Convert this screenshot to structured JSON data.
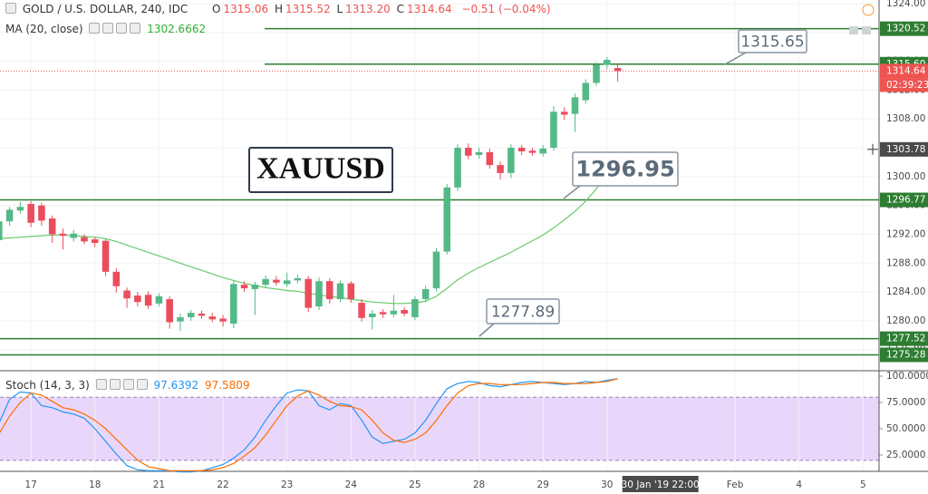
{
  "chart_data": {
    "type": "candlestick",
    "symbol": "GOLD / U.S. DOLLAR, 240, IDC",
    "ohlc_labels": [
      "O",
      "H",
      "L",
      "C"
    ],
    "legend_values": [
      "1315.06",
      "1315.52",
      "1313.20",
      "1314.64"
    ],
    "change": "−0.51 (−0.04%)",
    "colors": {
      "up": "#53b987",
      "down": "#eb4d5c"
    },
    "open": [
      1291.2,
      1293.8,
      1295.3,
      1296.2,
      1296.0,
      1294.2,
      1292.1,
      1291.5,
      1291.6,
      1291.3,
      1291.1,
      1286.8,
      1284.2,
      1283.5,
      1283.6,
      1282.4,
      1283.0,
      1279.9,
      1280.5,
      1281.0,
      1280.6,
      1280.3,
      1279.6,
      1285.0,
      1284.4,
      1285.0,
      1285.7,
      1285.1,
      1285.6,
      1285.8,
      1282.0,
      1285.5,
      1283.0,
      1285.2,
      1282.5,
      1280.5,
      1281.2,
      1280.9,
      1281.5,
      1280.5,
      1283.0,
      1284.5,
      1289.6,
      1298.5,
      1304.0,
      1303.0,
      1303.4,
      1301.6,
      1300.5,
      1304.0,
      1303.6,
      1303.2,
      1304.0,
      1309.0,
      1308.7,
      1310.6,
      1313.0,
      1315.5,
      1315.06
    ],
    "high": [
      1294.2,
      1295.8,
      1296.5,
      1296.6,
      1296.4,
      1294.6,
      1292.8,
      1292.6,
      1292.0,
      1291.6,
      1291.4,
      1287.3,
      1284.6,
      1284.0,
      1284.1,
      1283.8,
      1283.4,
      1281.0,
      1281.5,
      1281.4,
      1281.1,
      1280.8,
      1285.6,
      1285.5,
      1285.4,
      1286.3,
      1286.2,
      1286.7,
      1286.4,
      1286.2,
      1286.0,
      1285.9,
      1285.6,
      1285.5,
      1283.0,
      1281.5,
      1281.6,
      1283.6,
      1281.9,
      1283.4,
      1284.9,
      1290.1,
      1299.0,
      1304.5,
      1304.6,
      1304.0,
      1303.9,
      1302.1,
      1304.5,
      1304.4,
      1304.0,
      1304.4,
      1309.8,
      1309.6,
      1311.5,
      1313.5,
      1315.9,
      1316.6,
      1315.52
    ],
    "low": [
      1290.5,
      1293.2,
      1294.9,
      1293.0,
      1293.2,
      1290.8,
      1289.9,
      1291.0,
      1290.6,
      1290.2,
      1286.2,
      1283.9,
      1281.8,
      1282.0,
      1281.6,
      1282.0,
      1278.9,
      1278.6,
      1280.0,
      1280.3,
      1279.8,
      1279.2,
      1279.0,
      1284.0,
      1280.8,
      1284.6,
      1284.9,
      1284.7,
      1285.2,
      1281.2,
      1281.5,
      1282.4,
      1282.6,
      1282.5,
      1279.9,
      1278.8,
      1280.4,
      1280.5,
      1280.6,
      1280.1,
      1282.6,
      1284.1,
      1289.2,
      1298.0,
      1302.4,
      1302.5,
      1301.1,
      1299.6,
      1299.8,
      1303.0,
      1302.9,
      1302.8,
      1303.6,
      1307.9,
      1306.2,
      1310.1,
      1312.6,
      1314.9,
      1313.2
    ],
    "close": [
      1293.8,
      1295.4,
      1295.8,
      1293.6,
      1293.9,
      1292.0,
      1291.8,
      1292.1,
      1291.0,
      1290.8,
      1286.8,
      1284.8,
      1283.1,
      1282.6,
      1282.1,
      1283.4,
      1279.8,
      1280.5,
      1281.1,
      1280.7,
      1280.2,
      1279.9,
      1285.1,
      1284.5,
      1285.0,
      1285.8,
      1285.3,
      1285.6,
      1285.9,
      1281.8,
      1285.5,
      1283.0,
      1285.2,
      1283.0,
      1280.4,
      1281.0,
      1280.9,
      1281.4,
      1281.0,
      1283.0,
      1284.4,
      1289.6,
      1298.5,
      1304.0,
      1302.9,
      1303.4,
      1301.6,
      1300.5,
      1304.0,
      1303.5,
      1303.3,
      1303.9,
      1309.0,
      1308.6,
      1311.0,
      1313.0,
      1315.5,
      1316.2,
      1314.64
    ],
    "xlim": [
      0.1,
      82.5
    ],
    "xticks": [
      {
        "value": 3,
        "label": "17"
      },
      {
        "value": 9,
        "label": "18"
      },
      {
        "value": 15,
        "label": "21"
      },
      {
        "value": 21,
        "label": "22"
      },
      {
        "value": 27,
        "label": "23"
      },
      {
        "value": 33,
        "label": "24"
      },
      {
        "value": 39,
        "label": "25"
      },
      {
        "value": 45,
        "label": "28"
      },
      {
        "value": 51,
        "label": "29"
      },
      {
        "value": 57,
        "label": "30"
      },
      {
        "value": 69,
        "label": "Feb"
      },
      {
        "value": 75,
        "label": "4"
      },
      {
        "value": 81,
        "label": "5"
      }
    ],
    "ylim": [
      1273.2,
      1324.5
    ],
    "yticks": [
      {
        "value": 1276,
        "label": "1276.00"
      },
      {
        "value": 1280,
        "label": "1280.00"
      },
      {
        "value": 1284,
        "label": "1284.00"
      },
      {
        "value": 1288,
        "label": "1288.00"
      },
      {
        "value": 1292,
        "label": "1292.00"
      },
      {
        "value": 1296,
        "label": "1296.00"
      },
      {
        "value": 1300,
        "label": "1300.00"
      },
      {
        "value": 1304,
        "label": "1304.00"
      },
      {
        "value": 1308,
        "label": "1308.00"
      },
      {
        "value": 1312,
        "label": "1312.00"
      },
      {
        "value": 1316,
        "label": "1316.00"
      },
      {
        "value": 1320,
        "label": "1320.00"
      },
      {
        "value": 1324,
        "label": "1324.00"
      }
    ],
    "grid": true,
    "ma": {
      "name": "MA (20, close)",
      "color": "#66cc66",
      "values": [
        1291.4,
        1291.5,
        1291.6,
        1291.7,
        1291.8,
        1291.9,
        1291.9,
        1291.8,
        1291.7,
        1291.6,
        1291.4,
        1291.0,
        1290.5,
        1290.0,
        1289.5,
        1289.0,
        1288.5,
        1288.0,
        1287.5,
        1287.0,
        1286.5,
        1286.0,
        1285.6,
        1285.2,
        1284.9,
        1284.6,
        1284.4,
        1284.2,
        1284.1,
        1283.8,
        1283.6,
        1283.4,
        1283.2,
        1283.0,
        1282.8,
        1282.6,
        1282.5,
        1282.4,
        1282.4,
        1282.5,
        1282.7,
        1283.4,
        1284.5,
        1285.7,
        1286.6,
        1287.4,
        1288.1,
        1288.8,
        1289.5,
        1290.3,
        1291.1,
        1291.9,
        1292.9,
        1294.0,
        1295.2,
        1296.6,
        1298.3,
        1300.4,
        1302.6662
      ]
    },
    "level_color": "#2e7d32",
    "levels": [
      1320.52,
      {
        "value": 1315.6,
        "label": "1315.60"
      },
      1296.77,
      1277.52,
      1275.28
    ],
    "countdown": "02:39:23",
    "crosshair": {
      "price": 1303.78,
      "x": 62,
      "label": "30 Jan '19  22:00"
    },
    "annotations": [
      "1315.65",
      "1296.95",
      "1277.89",
      "XAUUSD"
    ],
    "stoch": {
      "name": "Stoch (14, 3, 3)",
      "ylim": [
        9.5,
        104.3
      ],
      "yticks": [
        {
          "value": 25,
          "label": "25.0000"
        },
        {
          "value": 50,
          "label": "50.0000"
        },
        {
          "value": 75,
          "label": "75.0000"
        },
        {
          "value": 100,
          "label": "100.0000"
        }
      ],
      "band": [
        20,
        80
      ],
      "band_color": "#e4ccfa",
      "series": [
        {
          "color": "#2196f3",
          "values": [
            55,
            78,
            85,
            84,
            72,
            70,
            66,
            64,
            60,
            50,
            38,
            26,
            15,
            11,
            10,
            10,
            10,
            9,
            9,
            10,
            13,
            16,
            22,
            30,
            42,
            58,
            72,
            84,
            87,
            86,
            72,
            68,
            74,
            72,
            58,
            42,
            36,
            38,
            40,
            46,
            58,
            74,
            88,
            93,
            95,
            94,
            91,
            90,
            92,
            94,
            95,
            94,
            93,
            92,
            93,
            95,
            94,
            96,
            97.6392
          ]
        },
        {
          "color": "#ff6d00",
          "values": [
            45,
            62,
            75,
            84,
            82,
            76,
            70,
            68,
            64,
            58,
            50,
            40,
            30,
            20,
            14,
            12,
            10,
            10,
            10,
            10,
            11,
            13,
            17,
            24,
            32,
            44,
            58,
            72,
            81,
            86,
            82,
            76,
            72,
            71,
            68,
            58,
            46,
            39,
            37,
            40,
            46,
            58,
            72,
            84,
            91,
            93,
            93,
            92,
            92,
            92,
            93,
            94,
            94,
            93,
            93,
            93,
            94,
            95,
            97.5809
          ]
        }
      ]
    }
  }
}
